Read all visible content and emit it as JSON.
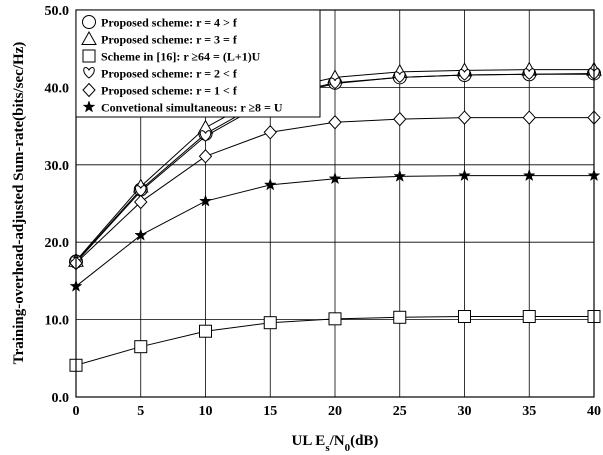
{
  "chart_data": {
    "type": "line",
    "xlabel": {
      "text": "UL E",
      "sub1": "s",
      "mid": "/N",
      "sub2": "0",
      "tail": "(dB)"
    },
    "ylabel": "Training-overhead-adjusted Sum-rate(bits/sec/Hz)",
    "xlim": [
      0,
      40
    ],
    "ylim": [
      0,
      50
    ],
    "grid": true,
    "legend_position": "top-left",
    "x": [
      0,
      5,
      10,
      15,
      20,
      25,
      30,
      35,
      40
    ],
    "x_ticks": [
      "0",
      "5",
      "10",
      "15",
      "20",
      "25",
      "30",
      "35",
      "40"
    ],
    "y_ticks": [
      "0.0",
      "10.0",
      "20.0",
      "30.0",
      "40.0",
      "50.0"
    ],
    "series": [
      {
        "name": "Proposed scheme: r = 4 > f",
        "marker": "circle",
        "values": [
          17.5,
          26.8,
          34.0,
          38.7,
          40.6,
          41.3,
          41.6,
          41.7,
          41.8
        ]
      },
      {
        "name": "Proposed scheme: r = 3 = f",
        "marker": "triangle",
        "values": [
          17.6,
          27.2,
          34.8,
          39.4,
          41.3,
          42.0,
          42.2,
          42.3,
          42.3
        ]
      },
      {
        "name": "Scheme in [16]: r ≥64 = (L+1)U",
        "marker": "square",
        "values": [
          4.1,
          6.5,
          8.5,
          9.6,
          10.1,
          10.3,
          10.4,
          10.4,
          10.4
        ]
      },
      {
        "name": "Proposed scheme: r = 2 < f",
        "marker": "heart",
        "values": [
          17.4,
          26.6,
          33.7,
          38.4,
          40.5,
          41.3,
          41.6,
          41.7,
          41.7
        ]
      },
      {
        "name": "Proposed scheme: r = 1 < f",
        "marker": "diamond",
        "values": [
          17.3,
          25.2,
          31.1,
          34.2,
          35.5,
          35.9,
          36.1,
          36.1,
          36.1
        ]
      },
      {
        "name": "Convetional simultaneous: r ≥8 = U",
        "marker": "star",
        "values": [
          14.3,
          20.9,
          25.3,
          27.4,
          28.2,
          28.5,
          28.6,
          28.6,
          28.6
        ]
      }
    ]
  }
}
